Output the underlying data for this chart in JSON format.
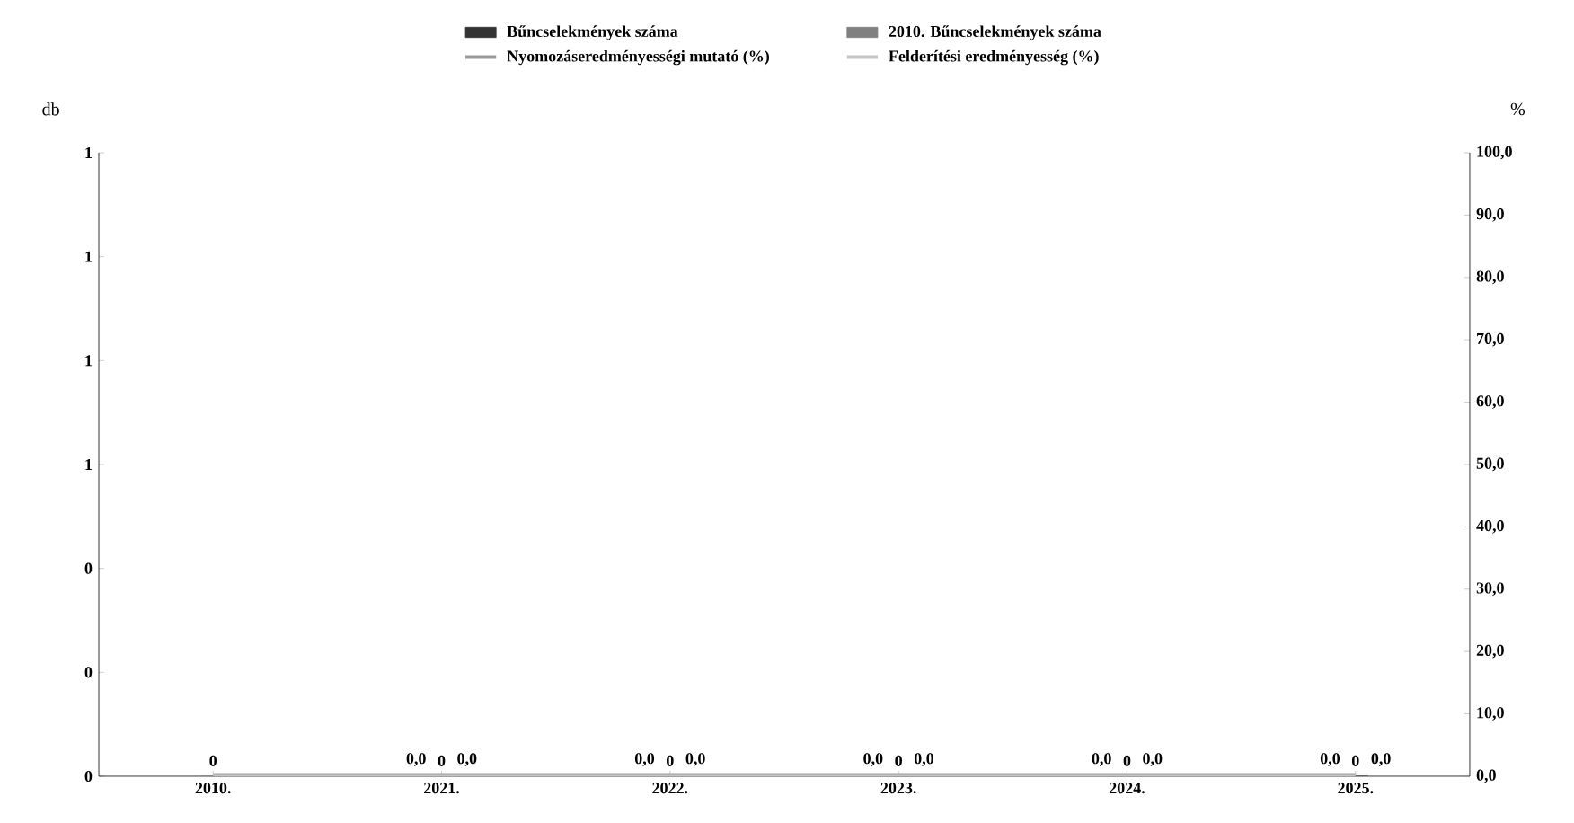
{
  "chart_data": {
    "type": "bar",
    "ylabel": "db",
    "y2label": "%",
    "categories": [
      "2010.",
      "2021.",
      "2022.",
      "2023.",
      "2024.",
      "2025."
    ],
    "series": [
      {
        "name": "Bűncselekmények száma",
        "color": "#333333",
        "values": [
          null,
          0,
          0,
          0,
          0,
          0
        ],
        "value_labels": [
          null,
          "0",
          "0",
          "0",
          "0",
          "0"
        ]
      },
      {
        "name": "2010. Bűncselekmények száma",
        "color": "#808080",
        "values": [
          0,
          null,
          null,
          null,
          null,
          null
        ],
        "value_labels": [
          "0",
          null,
          null,
          null,
          null,
          null
        ]
      },
      {
        "name": "Nyomozáseredményességi mutató (%)",
        "type": "line",
        "axis": "y2",
        "color": "#9a9a9a",
        "values": [
          0,
          0,
          0,
          0,
          0,
          0
        ],
        "value_labels": [
          null,
          "0,0",
          "0,0",
          "0,0",
          "0,0",
          "0,0"
        ]
      },
      {
        "name": "Felderítési eredményesség (%)",
        "type": "line",
        "axis": "y2",
        "color": "#c4c4c4",
        "values": [
          0,
          0,
          0,
          0,
          0,
          0
        ],
        "value_labels": [
          null,
          "0,0",
          "0,0",
          "0,0",
          "0,0",
          "0,0"
        ]
      }
    ],
    "ylim": [
      0,
      1.2
    ],
    "yticks": [
      0,
      {
        "value": 0.2,
        "label": "0"
      },
      {
        "value": 0.4,
        "label": "0"
      },
      {
        "value": 0.6,
        "label": "1"
      },
      {
        "value": 0.8,
        "label": "1"
      },
      {
        "value": 1,
        "label": "1"
      },
      {
        "value": 1.2,
        "label": "1"
      }
    ],
    "y2lim": [
      0,
      100
    ],
    "y2ticks": [
      {
        "value": 0,
        "label": "0,0"
      },
      {
        "value": 10,
        "label": "10,0"
      },
      {
        "value": 20,
        "label": "20,0"
      },
      {
        "value": 30,
        "label": "30,0"
      },
      {
        "value": 40,
        "label": "40,0"
      },
      {
        "value": 50,
        "label": "50,0"
      },
      {
        "value": 60,
        "label": "60,0"
      },
      {
        "value": 70,
        "label": "70,0"
      },
      {
        "value": 80,
        "label": "80,0"
      },
      {
        "value": 90,
        "label": "90,0"
      },
      {
        "value": 100,
        "label": "100,0"
      }
    ],
    "legend": "top",
    "marker": "none",
    "grid": false
  }
}
